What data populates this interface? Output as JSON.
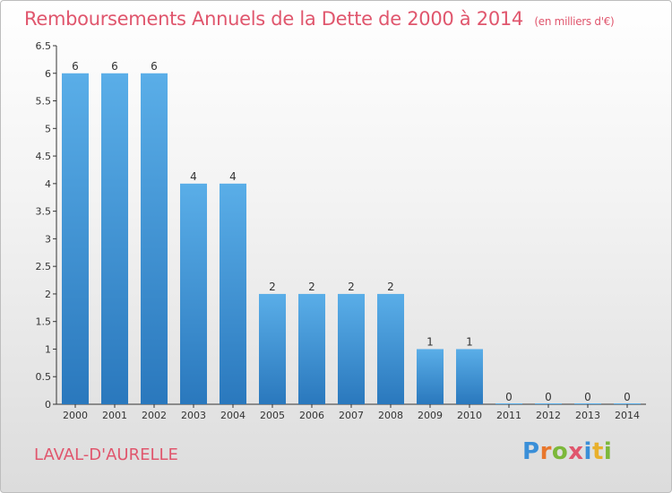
{
  "header": {
    "title": "Remboursements Annuels de la Dette de 2000 à 2014",
    "unit": "(en milliers d'€)"
  },
  "footer": {
    "commune": "LAVAL-D'AURELLE",
    "logo": "Proxiti"
  },
  "colors": {
    "title": "#e0566d",
    "bar_top": "#5aaee8",
    "bar_bottom": "#2a78bd",
    "logo_letters": [
      "#3a8fd8",
      "#e8772c",
      "#7cb83a",
      "#e0566d",
      "#3a8fd8",
      "#e8b02c",
      "#7cb83a"
    ]
  },
  "chart_data": {
    "type": "bar",
    "categories": [
      "2000",
      "2001",
      "2002",
      "2003",
      "2004",
      "2005",
      "2006",
      "2007",
      "2008",
      "2009",
      "2010",
      "2011",
      "2012",
      "2013",
      "2014"
    ],
    "values": [
      6,
      6,
      6,
      4,
      4,
      2,
      2,
      2,
      2,
      1,
      1,
      0,
      0,
      0,
      0
    ],
    "data_labels": [
      "6",
      "6",
      "6",
      "4",
      "4",
      "2",
      "2",
      "2",
      "2",
      "1",
      "1",
      "0",
      "0",
      "0",
      "0"
    ],
    "ylim": [
      0,
      6.5
    ],
    "yticks": [
      0,
      0.5,
      1,
      1.5,
      2,
      2.5,
      3,
      3.5,
      4,
      4.5,
      5,
      5.5,
      6,
      6.5
    ],
    "ytick_labels": [
      "0",
      "0.5",
      "1",
      "1.5",
      "2",
      "2.5",
      "3",
      "3.5",
      "4",
      "4.5",
      "5",
      "5.5",
      "6",
      "6.5"
    ],
    "xlabel": "",
    "ylabel": "",
    "grid": false
  }
}
